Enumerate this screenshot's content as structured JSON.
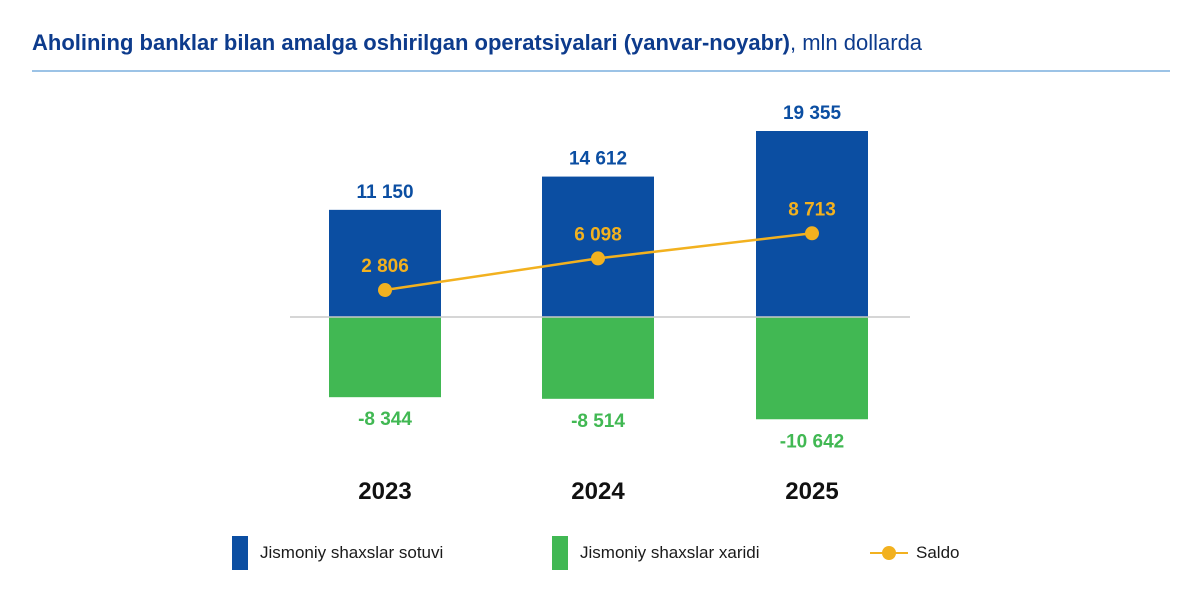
{
  "header": {
    "title_bold": "Aholining banklar bilan amalga oshirilgan operatsiyalari (yanvar-noyabr)",
    "title_unit": ", mln dollarda"
  },
  "colors": {
    "sales": "#0b4ea2",
    "purchases": "#41b853",
    "saldo": "#f2b11f",
    "title": "#0d3b8c"
  },
  "chart_data": {
    "type": "bar",
    "categories": [
      "2023",
      "2024",
      "2025"
    ],
    "series": [
      {
        "name": "Jismoniy shaxslar sotuvi",
        "type": "bar",
        "values": [
          11150,
          14612,
          19355
        ],
        "labels": [
          "11 150",
          "14 612",
          "19 355"
        ]
      },
      {
        "name": "Jismoniy shaxslar xaridi",
        "type": "bar",
        "values": [
          -8344,
          -8514,
          -10642
        ],
        "labels": [
          "-8 344",
          "-8 514",
          "-10 642"
        ]
      },
      {
        "name": "Saldo",
        "type": "line",
        "values": [
          2806,
          6098,
          8713
        ],
        "labels": [
          "2 806",
          "6 098",
          "8 713"
        ]
      }
    ],
    "title": "Aholining banklar bilan amalga oshirilgan operatsiyalari (yanvar-noyabr), mln dollarda",
    "xlabel": "",
    "ylabel": "",
    "ylim": [
      -12000,
      21000
    ]
  },
  "legend": {
    "sales": "Jismoniy shaxslar sotuvi",
    "purchases": "Jismoniy shaxslar xaridi",
    "saldo": "Saldo"
  }
}
